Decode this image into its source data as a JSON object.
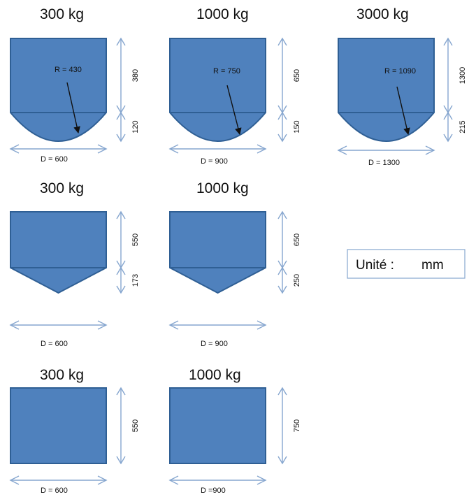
{
  "colors": {
    "tank_fill": "#4f81bd",
    "tank_stroke": "#2f5f94",
    "dimension_arrow": "#86a6cf",
    "pointer_arrow": "#111111",
    "unit_box_border": "#86a6cf"
  },
  "unit_box": {
    "label": "Unité :",
    "unit": "mm"
  },
  "rows": [
    {
      "bottom_type": "curved",
      "tanks": [
        {
          "capacity": "300 kg",
          "body_height": "380",
          "bottom_height": "120",
          "diameter": "D = 600",
          "radius": "R = 430"
        },
        {
          "capacity": "1000 kg",
          "body_height": "650",
          "bottom_height": "150",
          "diameter": "D = 900",
          "radius": "R = 750"
        },
        {
          "capacity": "3000 kg",
          "body_height": "1300",
          "bottom_height": "215",
          "diameter": "D = 1300",
          "radius": "R = 1090"
        }
      ]
    },
    {
      "bottom_type": "conical",
      "tanks": [
        {
          "capacity": "300 kg",
          "body_height": "550",
          "bottom_height": "173",
          "diameter": "D = 600"
        },
        {
          "capacity": "1000 kg",
          "body_height": "650",
          "bottom_height": "250",
          "diameter": "D = 900"
        }
      ]
    },
    {
      "bottom_type": "flat",
      "tanks": [
        {
          "capacity": "300 kg",
          "body_height": "550",
          "diameter": "D = 600"
        },
        {
          "capacity": "1000 kg",
          "body_height": "750",
          "diameter": "D =900"
        }
      ]
    }
  ]
}
